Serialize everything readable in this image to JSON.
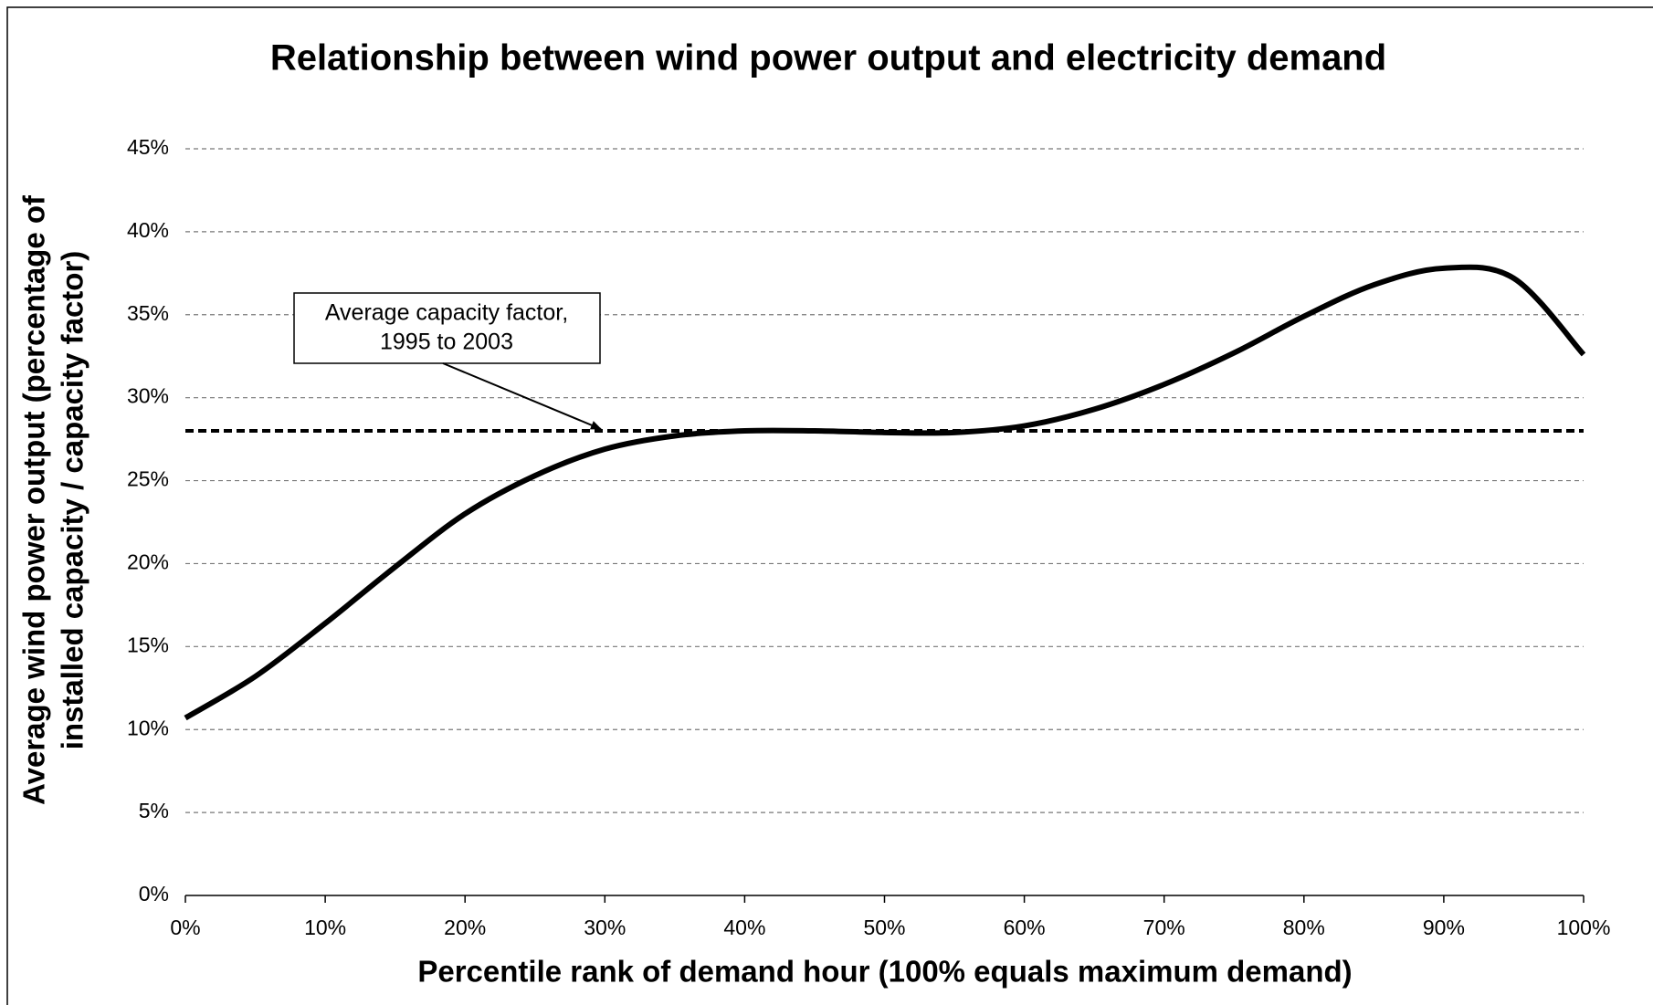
{
  "chart_data": {
    "type": "line",
    "title": "Relationship between wind power output and electricity demand",
    "x_label": "Percentile rank of demand hour (100% equals maximum demand)",
    "y_label": [
      "Average wind power output (percentage of",
      "installed capacity / capacity factor)"
    ],
    "x": [
      0,
      5,
      10,
      15,
      20,
      25,
      30,
      35,
      40,
      45,
      50,
      55,
      60,
      65,
      70,
      75,
      80,
      85,
      90,
      95,
      100
    ],
    "series": [
      {
        "color": "#000000",
        "values": [
          10.7,
          13.2,
          16.4,
          19.8,
          23.0,
          25.3,
          26.9,
          27.7,
          28.0,
          28.0,
          27.9,
          27.9,
          28.3,
          29.3,
          30.8,
          32.7,
          34.9,
          36.8,
          37.8,
          37.2,
          32.6
        ]
      }
    ],
    "reference_line": {
      "value": 28,
      "color": "#000000"
    },
    "annotation": [
      "Average capacity factor,",
      "1995 to 2003"
    ],
    "xlim": [
      0,
      100
    ],
    "xticks": [
      {
        "value": 0,
        "label": "0%"
      },
      {
        "value": 10,
        "label": "10%"
      },
      {
        "value": 20,
        "label": "20%"
      },
      {
        "value": 30,
        "label": "30%"
      },
      {
        "value": 40,
        "label": "40%"
      },
      {
        "value": 50,
        "label": "50%"
      },
      {
        "value": 60,
        "label": "60%"
      },
      {
        "value": 70,
        "label": "70%"
      },
      {
        "value": 80,
        "label": "80%"
      },
      {
        "value": 90,
        "label": "90%"
      },
      {
        "value": 100,
        "label": "100%"
      }
    ],
    "ylim": [
      0,
      45
    ],
    "yticks": [
      {
        "value": 0,
        "label": "0%"
      },
      {
        "value": 5,
        "label": "5%"
      },
      {
        "value": 10,
        "label": "10%"
      },
      {
        "value": 15,
        "label": "15%"
      },
      {
        "value": 20,
        "label": "20%"
      },
      {
        "value": 25,
        "label": "25%"
      },
      {
        "value": 30,
        "label": "30%"
      },
      {
        "value": 35,
        "label": "35%"
      },
      {
        "value": 40,
        "label": "40%"
      },
      {
        "value": 45,
        "label": "45%"
      }
    ],
    "grid": true
  }
}
